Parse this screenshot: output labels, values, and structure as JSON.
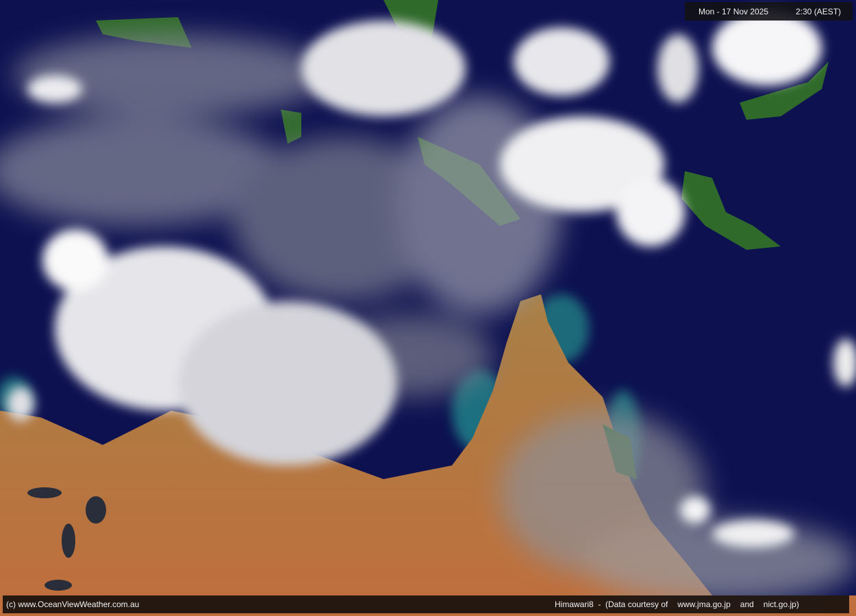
{
  "header": {
    "date": "Mon - 17 Nov 2025",
    "time": "2:30 (AEST)"
  },
  "footer": {
    "copyright": "(c) www.OceanViewWeather.com.au",
    "satellite": "Himawari8  -  (Data courtesy of",
    "source_1": "www.jma.go.jp",
    "and": "and",
    "source_2": "nict.go.jp)"
  },
  "colors": {
    "ocean": "#0d1150",
    "land": "#b8783c",
    "cloud": "#f2f2f2",
    "bar": "#16100e"
  }
}
